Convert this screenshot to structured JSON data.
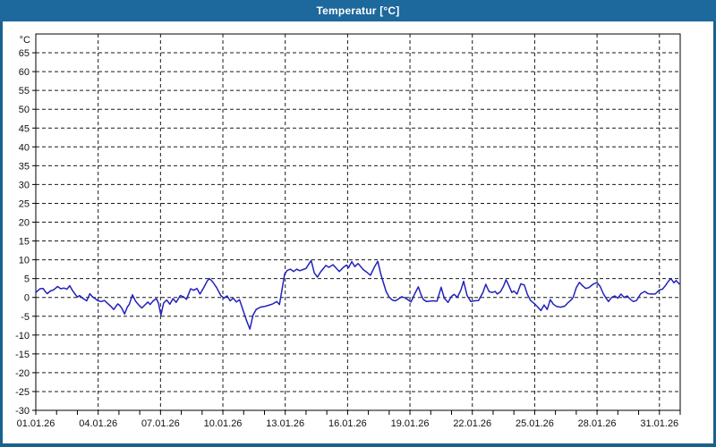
{
  "window": {
    "title": "Temperatur [°C]",
    "titlebar_color": "#1d689c",
    "border_color": "#19618f",
    "background": "#ffffff"
  },
  "chart_data": {
    "type": "line",
    "title": "Temperatur [°C]",
    "ylabel": "°C",
    "xlabel": "",
    "unit_label": "°C",
    "legend": "none",
    "grid": true,
    "grid_style": "dashed",
    "grid_color": "#1a1a1a",
    "frame_color": "#000000",
    "tick_label_color": "#111111",
    "line_color": "#2222bb",
    "xlim_days": [
      0,
      31
    ],
    "ylim": [
      -30,
      70
    ],
    "y_ticks": [
      -30,
      -25,
      -20,
      -15,
      -10,
      -5,
      0,
      5,
      10,
      15,
      20,
      25,
      30,
      35,
      40,
      45,
      50,
      55,
      60,
      65
    ],
    "x_tick_days": [
      0,
      3,
      6,
      9,
      12,
      15,
      18,
      21,
      24,
      27,
      30
    ],
    "x_tick_labels": [
      "01.01.26",
      "04.01.26",
      "07.01.26",
      "10.01.26",
      "13.01.26",
      "16.01.26",
      "19.01.26",
      "22.01.26",
      "25.01.26",
      "28.01.26",
      "31.01.26"
    ],
    "x_minor_tick_step_days": 1,
    "series": [
      {
        "name": "Temperatur",
        "unit": "°C",
        "points": [
          [
            0.0,
            1.3
          ],
          [
            0.1,
            1.8
          ],
          [
            0.2,
            2.3
          ],
          [
            0.35,
            2.4
          ],
          [
            0.45,
            1.6
          ],
          [
            0.55,
            1.0
          ],
          [
            0.7,
            1.7
          ],
          [
            0.85,
            2.0
          ],
          [
            1.05,
            2.9
          ],
          [
            1.2,
            2.3
          ],
          [
            1.35,
            2.5
          ],
          [
            1.5,
            2.2
          ],
          [
            1.63,
            3.1
          ],
          [
            1.75,
            2.0
          ],
          [
            1.9,
            0.8
          ],
          [
            2.0,
            0.1
          ],
          [
            2.1,
            0.5
          ],
          [
            2.25,
            -0.2
          ],
          [
            2.45,
            -0.9
          ],
          [
            2.6,
            1.0
          ],
          [
            2.7,
            0.3
          ],
          [
            2.85,
            -0.3
          ],
          [
            3.0,
            -0.9
          ],
          [
            3.15,
            -1.1
          ],
          [
            3.3,
            -0.8
          ],
          [
            3.5,
            -1.8
          ],
          [
            3.65,
            -2.6
          ],
          [
            3.75,
            -3.2
          ],
          [
            3.85,
            -2.4
          ],
          [
            3.95,
            -1.7
          ],
          [
            4.05,
            -2.2
          ],
          [
            4.15,
            -3.0
          ],
          [
            4.27,
            -4.4
          ],
          [
            4.4,
            -2.6
          ],
          [
            4.5,
            -1.8
          ],
          [
            4.65,
            0.7
          ],
          [
            4.8,
            -1.0
          ],
          [
            4.95,
            -2.0
          ],
          [
            5.1,
            -2.8
          ],
          [
            5.25,
            -2.0
          ],
          [
            5.4,
            -1.2
          ],
          [
            5.5,
            -1.9
          ],
          [
            5.65,
            -0.9
          ],
          [
            5.8,
            -0.3
          ],
          [
            5.9,
            -1.5
          ],
          [
            6.02,
            -4.7
          ],
          [
            6.15,
            -1.5
          ],
          [
            6.3,
            -0.7
          ],
          [
            6.45,
            -1.8
          ],
          [
            6.6,
            -0.3
          ],
          [
            6.75,
            -1.3
          ],
          [
            6.95,
            0.5
          ],
          [
            7.1,
            0.2
          ],
          [
            7.25,
            -0.5
          ],
          [
            7.45,
            2.3
          ],
          [
            7.6,
            1.9
          ],
          [
            7.75,
            2.4
          ],
          [
            7.9,
            0.9
          ],
          [
            8.1,
            2.8
          ],
          [
            8.25,
            4.4
          ],
          [
            8.35,
            5.0
          ],
          [
            8.5,
            4.2
          ],
          [
            8.7,
            2.6
          ],
          [
            8.9,
            0.5
          ],
          [
            9.05,
            -0.2
          ],
          [
            9.2,
            0.4
          ],
          [
            9.35,
            -0.9
          ],
          [
            9.5,
            -0.2
          ],
          [
            9.65,
            -1.2
          ],
          [
            9.8,
            -0.6
          ],
          [
            10.0,
            -3.9
          ],
          [
            10.15,
            -6.3
          ],
          [
            10.3,
            -8.4
          ],
          [
            10.45,
            -4.7
          ],
          [
            10.6,
            -3.2
          ],
          [
            10.8,
            -2.6
          ],
          [
            11.0,
            -2.4
          ],
          [
            11.2,
            -2.1
          ],
          [
            11.4,
            -1.7
          ],
          [
            11.6,
            -1.1
          ],
          [
            11.72,
            -1.9
          ],
          [
            11.85,
            2.2
          ],
          [
            11.97,
            6.2
          ],
          [
            12.1,
            7.2
          ],
          [
            12.25,
            7.5
          ],
          [
            12.4,
            6.9
          ],
          [
            12.55,
            7.5
          ],
          [
            12.7,
            7.1
          ],
          [
            12.85,
            7.4
          ],
          [
            13.0,
            7.7
          ],
          [
            13.15,
            9.0
          ],
          [
            13.25,
            9.8
          ],
          [
            13.4,
            6.5
          ],
          [
            13.55,
            5.4
          ],
          [
            13.7,
            6.8
          ],
          [
            13.85,
            7.8
          ],
          [
            13.95,
            8.5
          ],
          [
            14.1,
            8.0
          ],
          [
            14.3,
            8.7
          ],
          [
            14.45,
            7.8
          ],
          [
            14.6,
            6.9
          ],
          [
            14.8,
            8.0
          ],
          [
            14.95,
            8.6
          ],
          [
            15.05,
            7.9
          ],
          [
            15.2,
            9.5
          ],
          [
            15.35,
            8.2
          ],
          [
            15.5,
            9.0
          ],
          [
            15.6,
            8.4
          ],
          [
            15.75,
            7.4
          ],
          [
            15.9,
            6.8
          ],
          [
            16.1,
            5.9
          ],
          [
            16.3,
            8.2
          ],
          [
            16.45,
            9.6
          ],
          [
            16.6,
            6.2
          ],
          [
            16.7,
            4.3
          ],
          [
            16.85,
            1.6
          ],
          [
            17.0,
            0.1
          ],
          [
            17.15,
            -0.7
          ],
          [
            17.3,
            -0.9
          ],
          [
            17.45,
            -0.4
          ],
          [
            17.6,
            0.2
          ],
          [
            17.75,
            -0.1
          ],
          [
            17.9,
            -0.6
          ],
          [
            18.05,
            -1.2
          ],
          [
            18.25,
            1.2
          ],
          [
            18.4,
            2.8
          ],
          [
            18.55,
            0.5
          ],
          [
            18.65,
            -0.6
          ],
          [
            18.8,
            -1.1
          ],
          [
            18.95,
            -1.0
          ],
          [
            19.1,
            -0.9
          ],
          [
            19.3,
            -1.0
          ],
          [
            19.5,
            2.7
          ],
          [
            19.65,
            -0.2
          ],
          [
            19.83,
            -1.3
          ],
          [
            20.0,
            0.3
          ],
          [
            20.13,
            0.8
          ],
          [
            20.28,
            0.0
          ],
          [
            20.45,
            2.0
          ],
          [
            20.58,
            4.3
          ],
          [
            20.75,
            0.5
          ],
          [
            20.93,
            -1.1
          ],
          [
            21.1,
            -0.9
          ],
          [
            21.3,
            -0.8
          ],
          [
            21.5,
            1.2
          ],
          [
            21.65,
            3.5
          ],
          [
            21.8,
            1.6
          ],
          [
            21.95,
            1.3
          ],
          [
            22.1,
            1.6
          ],
          [
            22.2,
            0.9
          ],
          [
            22.35,
            1.5
          ],
          [
            22.5,
            3.0
          ],
          [
            22.62,
            4.7
          ],
          [
            22.75,
            3.2
          ],
          [
            22.9,
            1.3
          ],
          [
            23.0,
            1.7
          ],
          [
            23.15,
            0.9
          ],
          [
            23.33,
            3.6
          ],
          [
            23.5,
            3.3
          ],
          [
            23.65,
            0.8
          ],
          [
            23.8,
            -0.8
          ],
          [
            24.0,
            -1.7
          ],
          [
            24.15,
            -2.6
          ],
          [
            24.3,
            -3.5
          ],
          [
            24.45,
            -2.0
          ],
          [
            24.6,
            -3.2
          ],
          [
            24.75,
            -0.6
          ],
          [
            24.9,
            -1.8
          ],
          [
            25.05,
            -2.4
          ],
          [
            25.25,
            -2.6
          ],
          [
            25.45,
            -2.3
          ],
          [
            25.6,
            -1.4
          ],
          [
            25.75,
            -0.7
          ],
          [
            25.85,
            0.0
          ],
          [
            26.0,
            2.6
          ],
          [
            26.15,
            4.0
          ],
          [
            26.3,
            3.1
          ],
          [
            26.45,
            2.4
          ],
          [
            26.6,
            2.6
          ],
          [
            26.8,
            3.5
          ],
          [
            27.0,
            4.0
          ],
          [
            27.15,
            2.9
          ],
          [
            27.3,
            1.0
          ],
          [
            27.45,
            -0.3
          ],
          [
            27.55,
            -1.1
          ],
          [
            27.7,
            0.0
          ],
          [
            27.85,
            0.4
          ],
          [
            28.0,
            -0.2
          ],
          [
            28.15,
            0.9
          ],
          [
            28.3,
            0.0
          ],
          [
            28.45,
            0.4
          ],
          [
            28.6,
            -0.5
          ],
          [
            28.75,
            -1.1
          ],
          [
            28.9,
            -0.8
          ],
          [
            29.1,
            1.0
          ],
          [
            29.3,
            1.6
          ],
          [
            29.45,
            1.0
          ],
          [
            29.6,
            0.9
          ],
          [
            29.8,
            0.9
          ],
          [
            30.0,
            2.0
          ],
          [
            30.15,
            2.2
          ],
          [
            30.3,
            3.2
          ],
          [
            30.42,
            4.2
          ],
          [
            30.55,
            5.0
          ],
          [
            30.7,
            3.9
          ],
          [
            30.8,
            4.5
          ],
          [
            30.95,
            3.6
          ]
        ]
      }
    ]
  }
}
